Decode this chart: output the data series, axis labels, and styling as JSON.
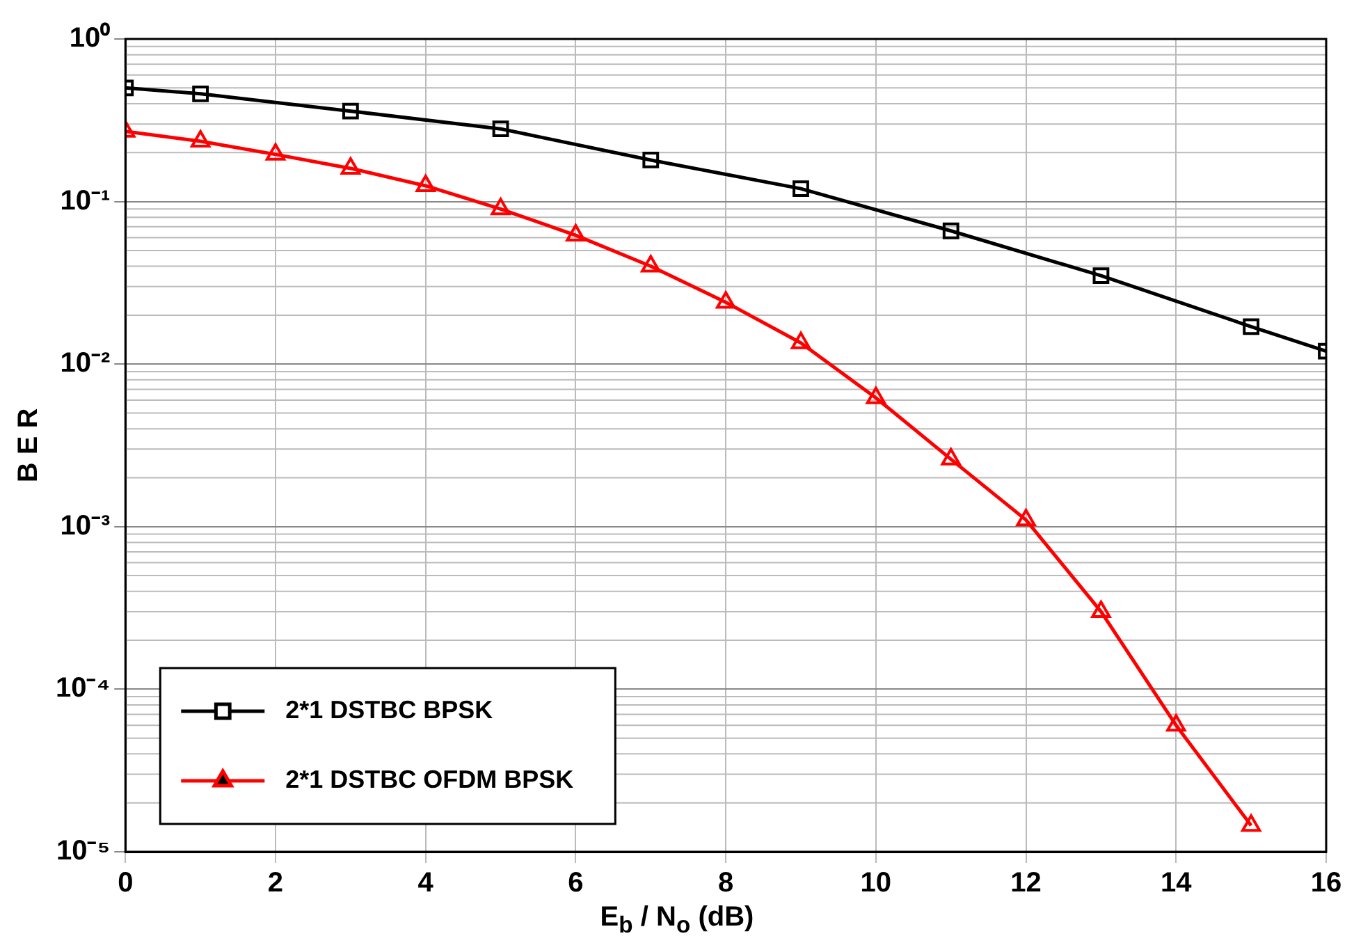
{
  "chart_data": {
    "type": "line",
    "xlabel": "E$_{b}$ / N$_{o}$ (dB)",
    "ylabel": "B E R",
    "xlim": [
      0,
      16
    ],
    "xticks": [
      0,
      2,
      4,
      6,
      8,
      10,
      12,
      14,
      16
    ],
    "ylim": [
      1e-05,
      1
    ],
    "yticks": [
      {
        "value": 1e-05,
        "label": "10⁻⁵"
      },
      {
        "value": 0.0001,
        "label": "10⁻⁴"
      },
      {
        "value": 0.001,
        "label": "10⁻³"
      },
      {
        "value": 0.01,
        "label": "10⁻²"
      },
      {
        "value": 0.1,
        "label": "10⁻¹"
      },
      {
        "value": 1,
        "label": "10⁰"
      }
    ],
    "log": "y",
    "grid": true,
    "legend": "bottom left",
    "line_style": "solid",
    "series": [
      {
        "name": "2*1 DSTBC BPSK",
        "color": "#000000",
        "marker": "square",
        "x": [
          0,
          1,
          3,
          5,
          7,
          9,
          11,
          13,
          15,
          16
        ],
        "values": [
          0.5,
          0.46,
          0.36,
          0.28,
          0.18,
          0.12,
          0.066,
          0.035,
          0.017,
          0.012
        ]
      },
      {
        "name": "2*1 DSTBC OFDM BPSK",
        "color": "#ff0000",
        "marker": "triangle",
        "x": [
          0,
          1,
          2,
          3,
          4,
          5,
          6,
          7,
          8,
          9,
          10,
          11,
          12,
          13,
          14,
          15
        ],
        "values": [
          0.27,
          0.235,
          0.195,
          0.16,
          0.125,
          0.09,
          0.062,
          0.04,
          0.024,
          0.0135,
          0.0062,
          0.0026,
          0.0011,
          0.0003,
          6e-05,
          1.45e-05
        ]
      }
    ]
  }
}
